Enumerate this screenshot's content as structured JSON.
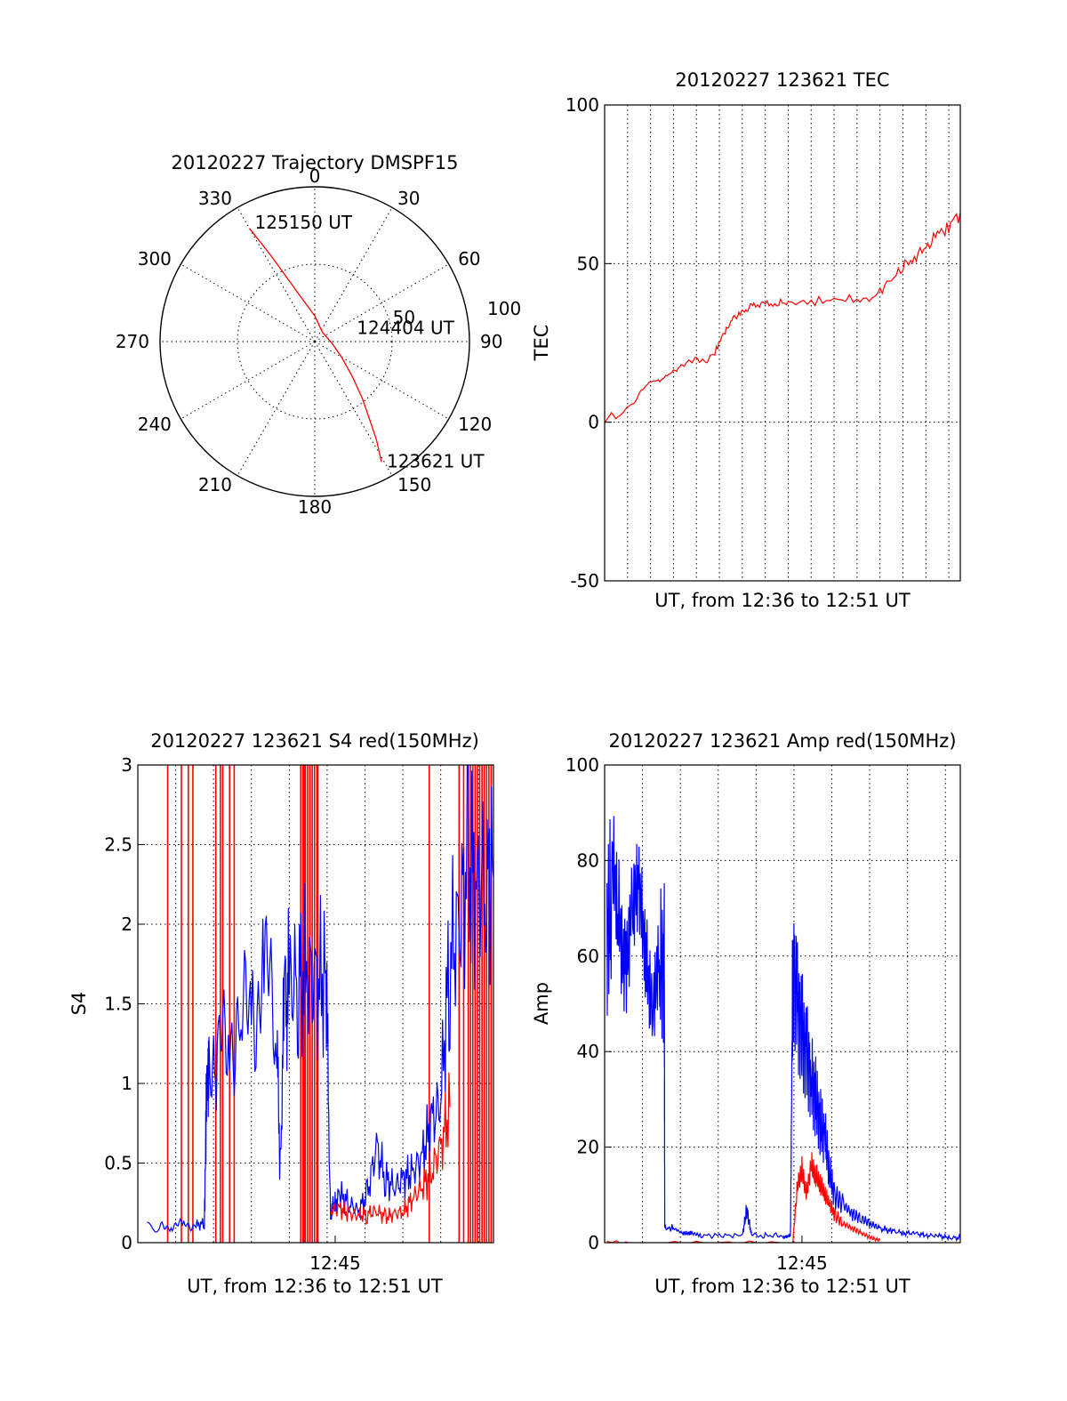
{
  "page": {
    "background": "#ffffff"
  },
  "chart_data": [
    {
      "id": "trajectory",
      "type": "polar",
      "title": "20120227 Trajectory DMSPF15",
      "angle_ticks": [
        0,
        30,
        60,
        90,
        120,
        150,
        180,
        210,
        240,
        270,
        300,
        330
      ],
      "angle_tick_labels": [
        "0",
        "30",
        "60",
        "90",
        "120",
        "150",
        "180",
        "210",
        "240",
        "270",
        "300",
        "330"
      ],
      "radial_ticks": [
        50,
        100
      ],
      "radial_tick_labels": [
        "50",
        "100"
      ],
      "rlim": [
        0,
        100
      ],
      "grid": true,
      "series": [
        {
          "color": "#ff0000",
          "points": [
            {
              "az": 151,
              "el": 10,
              "label": "123621 UT"
            },
            {
              "az": 148,
              "el": 22
            },
            {
              "az": 145,
              "el": 34
            },
            {
              "az": 140,
              "el": 47
            },
            {
              "az": 133,
              "el": 60
            },
            {
              "az": 120,
              "el": 72
            },
            {
              "az": 95,
              "el": 80,
              "label": "124404 UT"
            },
            {
              "az": 40,
              "el": 83
            },
            {
              "az": 0,
              "el": 75
            },
            {
              "az": 342,
              "el": 62
            },
            {
              "az": 336,
              "el": 48
            },
            {
              "az": 333,
              "el": 34
            },
            {
              "az": 331,
              "el": 22
            },
            {
              "az": 330,
              "el": 14,
              "label": "125150 UT"
            }
          ]
        }
      ]
    },
    {
      "id": "tec",
      "type": "line",
      "title": "20120227 123621 TEC",
      "xlabel": "UT, from 12:36 to 12:51 UT",
      "ylabel": "TEC",
      "xlim": [
        0,
        15.5
      ],
      "ylim": [
        -50,
        100
      ],
      "yticks": [
        -50,
        0,
        50,
        100
      ],
      "xgrid_step_min": 1,
      "grid": true,
      "series": [
        {
          "color": "#ff0000",
          "x": [
            0,
            0.3,
            0.5,
            0.8,
            1.0,
            1.3,
            1.6,
            2.0,
            2.4,
            2.8,
            3.2,
            3.6,
            4.0,
            4.4,
            4.8,
            5.0,
            5.3,
            5.6,
            5.9,
            6.2,
            6.5,
            7.0,
            7.5,
            8.0,
            9.0,
            10.0,
            11.0,
            11.8,
            12.4,
            13.0,
            13.5,
            14.0,
            14.5,
            15.0,
            15.5
          ],
          "y": [
            0,
            3,
            1,
            3,
            5,
            6,
            10,
            13,
            13,
            15,
            17,
            19,
            20,
            19,
            22,
            25,
            29,
            33,
            35,
            36,
            37,
            37,
            37.5,
            37.5,
            38,
            38.5,
            39,
            40,
            44,
            49,
            52,
            55,
            59,
            62,
            66
          ]
        }
      ]
    },
    {
      "id": "s4",
      "type": "line",
      "title": "20120227 123621 S4 red(150MHz)",
      "xlabel": "UT, from 12:36 to 12:51 UT",
      "ylabel": "S4",
      "xlim": [
        0,
        15.5
      ],
      "ylim": [
        0,
        3
      ],
      "yticks": [
        0,
        0.5,
        1,
        1.5,
        2,
        2.5,
        3
      ],
      "ytick_labels": [
        "0",
        "0.5",
        "1",
        "1.5",
        "2",
        "2.5",
        "3"
      ],
      "xticks": [
        8.6
      ],
      "xtick_labels": [
        "12:45"
      ],
      "grid": true,
      "spikes": {
        "color": "#ff0000",
        "x": [
          1.3,
          1.9,
          2.2,
          2.4,
          3.4,
          3.6,
          3.7,
          4.0,
          4.2,
          7.1,
          7.2,
          7.25,
          7.3,
          7.4,
          7.5,
          7.6,
          7.7,
          7.8,
          7.85,
          12.7,
          14.0,
          14.2,
          14.4,
          14.5,
          14.6,
          14.7,
          14.8,
          14.9,
          15.0,
          15.1,
          15.2,
          15.3,
          15.4
        ]
      },
      "series": [
        {
          "color": "#0000ff",
          "x": [
            0.4,
            1.0,
            1.5,
            2.0,
            2.5,
            2.9,
            3.0,
            3.1,
            3.5,
            4.0,
            4.5,
            5.0,
            5.5,
            6.0,
            6.2,
            6.4,
            6.6,
            7.0,
            7.4,
            7.8,
            8.2,
            8.4,
            8.6,
            8.8,
            9.2,
            9.6,
            10.0,
            10.4,
            10.8,
            11.2,
            11.6,
            12.0,
            12.4,
            12.8,
            13.2,
            13.6,
            14.0,
            14.4,
            14.8,
            15.2,
            15.5
          ],
          "y": [
            0.1,
            0.1,
            0.11,
            0.11,
            0.11,
            0.12,
            1.0,
            1.05,
            1.1,
            1.4,
            1.3,
            1.55,
            1.6,
            1.5,
            0.5,
            1.55,
            1.6,
            1.65,
            1.7,
            1.6,
            1.7,
            0.2,
            0.25,
            0.3,
            0.25,
            0.2,
            0.3,
            0.6,
            0.4,
            0.35,
            0.4,
            0.45,
            0.55,
            0.75,
            0.9,
            1.8,
            2.0,
            2.4,
            2.2,
            2.3,
            2.3
          ]
        },
        {
          "color": "#ff0000",
          "x": [
            8.4,
            8.8,
            9.2,
            9.6,
            10.0,
            10.4,
            10.8,
            11.2,
            11.6,
            12.0,
            12.4,
            12.8,
            13.2,
            13.6
          ],
          "y": [
            0.2,
            0.22,
            0.18,
            0.17,
            0.18,
            0.2,
            0.16,
            0.18,
            0.2,
            0.28,
            0.35,
            0.45,
            0.6,
            0.85
          ]
        }
      ]
    },
    {
      "id": "amp",
      "type": "line",
      "title": "20120227 123621 Amp red(150MHz)",
      "xlabel": "UT, from 12:36 to 12:51 UT",
      "ylabel": "Amp",
      "xlim": [
        0,
        15.5
      ],
      "ylim": [
        0,
        100
      ],
      "yticks": [
        0,
        20,
        40,
        60,
        80,
        100
      ],
      "xticks": [
        8.6
      ],
      "xtick_labels": [
        "12:45"
      ],
      "grid": true,
      "series": [
        {
          "color": "#0000ff",
          "x": [
            0.1,
            0.3,
            0.6,
            0.9,
            1.2,
            1.5,
            1.8,
            2.1,
            2.4,
            2.6,
            2.62,
            3.0,
            3.4,
            3.6,
            3.8,
            4.2,
            5.0,
            6.0,
            6.2,
            6.4,
            7.0,
            7.8,
            8.1,
            8.2,
            8.4,
            8.6,
            8.8,
            9.0,
            9.2,
            9.4,
            9.6,
            9.8,
            10.0,
            10.4,
            10.8,
            11.2,
            11.6,
            12.0,
            12.5,
            13.0,
            13.5,
            14.0,
            14.5,
            15.0,
            15.5
          ],
          "y": [
            65,
            70,
            72,
            68,
            66,
            64,
            62,
            60,
            58,
            58,
            3,
            3,
            2,
            2,
            2,
            1.5,
            1.5,
            1.5,
            7,
            1.5,
            1.5,
            1.5,
            1.5,
            60,
            50,
            45,
            40,
            35,
            30,
            25,
            22,
            15,
            10,
            8,
            6,
            5,
            4,
            3,
            2.5,
            2,
            2,
            1.5,
            1.5,
            1,
            1
          ]
        },
        {
          "color": "#ff0000",
          "x": [
            0.1,
            2.6,
            8.2,
            8.4,
            8.6,
            8.8,
            9.0,
            9.2,
            9.4,
            9.6,
            9.8,
            10.0,
            10.4,
            10.8,
            11.2,
            11.6,
            12.0
          ],
          "y": [
            0,
            0,
            0,
            12,
            15,
            10,
            16,
            14,
            12,
            10,
            8,
            6,
            4,
            3,
            2,
            1,
            0.5
          ]
        }
      ]
    }
  ]
}
